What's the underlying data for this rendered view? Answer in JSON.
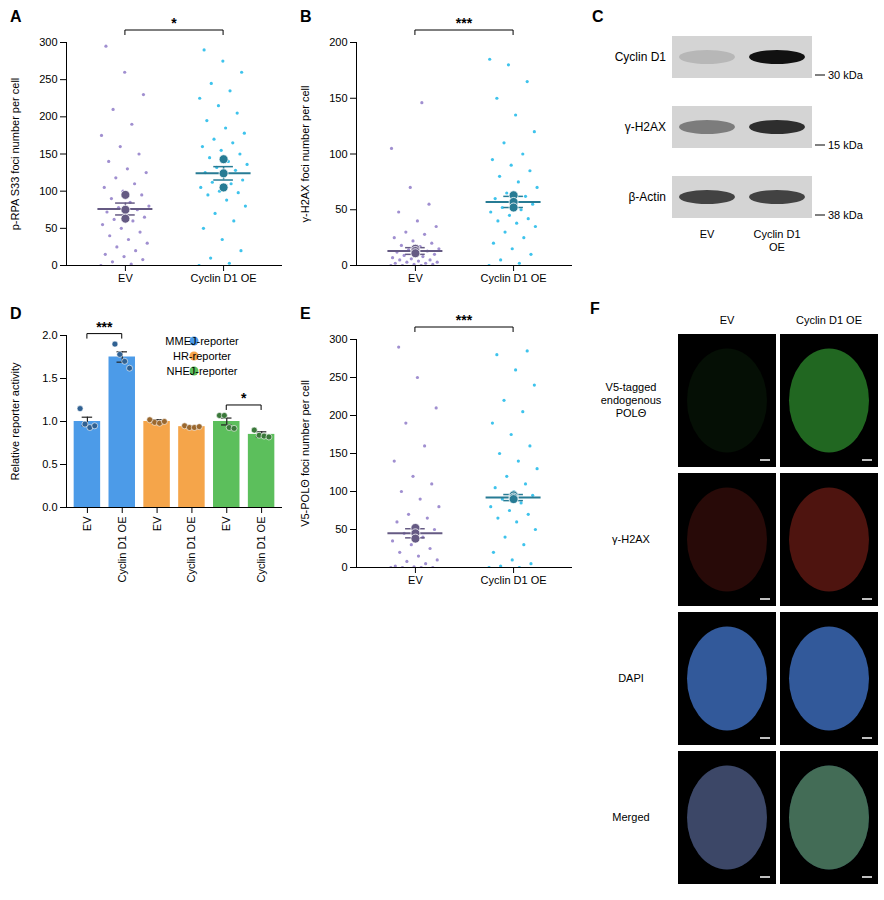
{
  "chart_data": [
    {
      "panel": "A",
      "type": "dot_plot",
      "y_label": "p-RPA S33 foci number per cell",
      "categories": [
        "EV",
        "Cyclin D1 OE"
      ],
      "colors": [
        "#a08fd0",
        "#3ec3ec"
      ],
      "ylim": [
        0,
        300
      ],
      "yticks": [
        0,
        50,
        100,
        150,
        200,
        250,
        300
      ],
      "points": [
        [
          0,
          2,
          5,
          8,
          12,
          15,
          20,
          25,
          30,
          35,
          40,
          45,
          50,
          55,
          60,
          62,
          65,
          70,
          72,
          75,
          78,
          80,
          85,
          90,
          95,
          100,
          105,
          110,
          118,
          125,
          130,
          140,
          150,
          160,
          175,
          190,
          210,
          230,
          260,
          295
        ],
        [
          0,
          3,
          10,
          20,
          35,
          50,
          60,
          70,
          80,
          88,
          95,
          98,
          100,
          105,
          110,
          112,
          115,
          120,
          125,
          128,
          132,
          136,
          140,
          145,
          150,
          155,
          160,
          165,
          170,
          178,
          185,
          195,
          205,
          215,
          225,
          235,
          245,
          260,
          275,
          290
        ]
      ],
      "means": [
        76,
        124
      ],
      "sem": [
        8,
        9
      ],
      "replicate_means": [
        [
          95,
          75,
          63
        ],
        [
          143,
          124,
          105
        ]
      ],
      "annotations": [
        {
          "text": "*"
        }
      ]
    },
    {
      "panel": "B",
      "type": "dot_plot",
      "y_label": "γ-H2AX foci number per cell",
      "categories": [
        "EV",
        "Cyclin D1 OE"
      ],
      "colors": [
        "#a08fd0",
        "#3ec3ec"
      ],
      "ylim": [
        0,
        200
      ],
      "yticks": [
        0,
        50,
        100,
        150,
        200
      ],
      "points": [
        [
          0,
          0,
          0,
          1,
          1,
          2,
          2,
          3,
          3,
          4,
          5,
          5,
          6,
          7,
          8,
          9,
          10,
          10,
          12,
          13,
          14,
          15,
          17,
          18,
          20,
          22,
          25,
          28,
          30,
          35,
          40,
          48,
          55,
          70,
          105,
          146
        ],
        [
          0,
          2,
          5,
          10,
          15,
          20,
          25,
          30,
          35,
          38,
          40,
          42,
          45,
          48,
          50,
          52,
          55,
          58,
          60,
          62,
          65,
          70,
          75,
          80,
          85,
          90,
          95,
          100,
          110,
          120,
          135,
          150,
          165,
          180,
          185
        ]
      ],
      "means": [
        13,
        57
      ],
      "sem": [
        3,
        5
      ],
      "replicate_means": [
        [
          15,
          13,
          11
        ],
        [
          63,
          57,
          52
        ]
      ],
      "annotations": [
        {
          "text": "***"
        }
      ]
    },
    {
      "panel": "D",
      "type": "bar",
      "y_label": "Relative reporter activity",
      "categories": [
        "EV",
        "Cyclin D1 OE"
      ],
      "ylim": [
        0,
        2
      ],
      "yticks": [
        {
          "value": 0,
          "label": "0.0"
        },
        0.5,
        {
          "value": 1,
          "label": "1.0"
        },
        1.5,
        {
          "value": 2,
          "label": "2.0"
        }
      ],
      "legend": "top-right",
      "series": [
        {
          "name": "MMEJ-reporter",
          "color": "#4c9be8",
          "values": [
            1.0,
            1.75
          ],
          "errors": [
            0.05,
            0.06
          ],
          "points": [
            [
              1.15,
              0.97,
              0.93,
              0.95
            ],
            [
              1.9,
              1.78,
              1.7,
              1.62
            ]
          ]
        },
        {
          "name": "HR-reporter",
          "color": "#f5a54a",
          "values": [
            1.0,
            0.94
          ],
          "errors": [
            0.02,
            0.01
          ],
          "points": [
            [
              1.02,
              0.99,
              0.98,
              1.0
            ],
            [
              0.95,
              0.93,
              0.93,
              0.94
            ]
          ]
        },
        {
          "name": "NHEJ-reporter",
          "color": "#5cbf5c",
          "values": [
            1.0,
            0.85
          ],
          "errors": [
            0.04,
            0.03
          ],
          "points": [
            [
              1.07,
              1.07,
              0.93,
              0.92
            ],
            [
              0.9,
              0.84,
              0.83,
              0.82
            ]
          ]
        }
      ],
      "annotations": [
        {
          "text": "***",
          "series": "MMEJ-reporter"
        },
        {
          "text": "*",
          "series": "NHEJ-reporter"
        }
      ]
    },
    {
      "panel": "E",
      "type": "dot_plot",
      "y_label": "V5-POLΘ foci number per cell",
      "categories": [
        "EV",
        "Cyclin D1 OE"
      ],
      "colors": [
        "#a08fd0",
        "#3ec3ec"
      ],
      "ylim": [
        0,
        300
      ],
      "yticks": [
        0,
        50,
        100,
        150,
        200,
        250,
        300
      ],
      "points": [
        [
          0,
          0,
          0,
          0,
          1,
          2,
          5,
          8,
          10,
          15,
          20,
          25,
          30,
          35,
          40,
          45,
          50,
          55,
          60,
          65,
          70,
          80,
          90,
          100,
          110,
          120,
          140,
          160,
          190,
          210,
          250,
          290
        ],
        [
          0,
          0,
          2,
          5,
          10,
          20,
          30,
          40,
          50,
          60,
          65,
          70,
          75,
          80,
          85,
          90,
          95,
          100,
          105,
          110,
          120,
          130,
          140,
          150,
          160,
          175,
          190,
          205,
          220,
          240,
          260,
          280,
          285
        ]
      ],
      "means": [
        45,
        92
      ],
      "sem": [
        6,
        4
      ],
      "replicate_means": [
        [
          52,
          45,
          38
        ],
        [
          95,
          92,
          90
        ]
      ],
      "annotations": [
        {
          "text": "***"
        }
      ]
    }
  ],
  "blot": {
    "panel": "C",
    "lanes": [
      "EV",
      "Cyclin D1 OE"
    ],
    "rows": [
      {
        "label": "Cyclin D1",
        "marker": "30 kDa",
        "intensity": [
          0.15,
          1.0
        ]
      },
      {
        "label": "γ-H2AX",
        "marker": "15 kDa",
        "intensity": [
          0.45,
          0.85
        ]
      },
      {
        "label": "β-Actin",
        "marker": "38 kDa",
        "intensity": [
          0.75,
          0.75
        ]
      }
    ]
  },
  "images": {
    "panel": "F",
    "columns": [
      "EV",
      "Cyclin D1 OE"
    ],
    "rows": [
      "V5-tagged endogenous POLΘ",
      "γ-H2AX",
      "DAPI",
      "Merged"
    ]
  }
}
